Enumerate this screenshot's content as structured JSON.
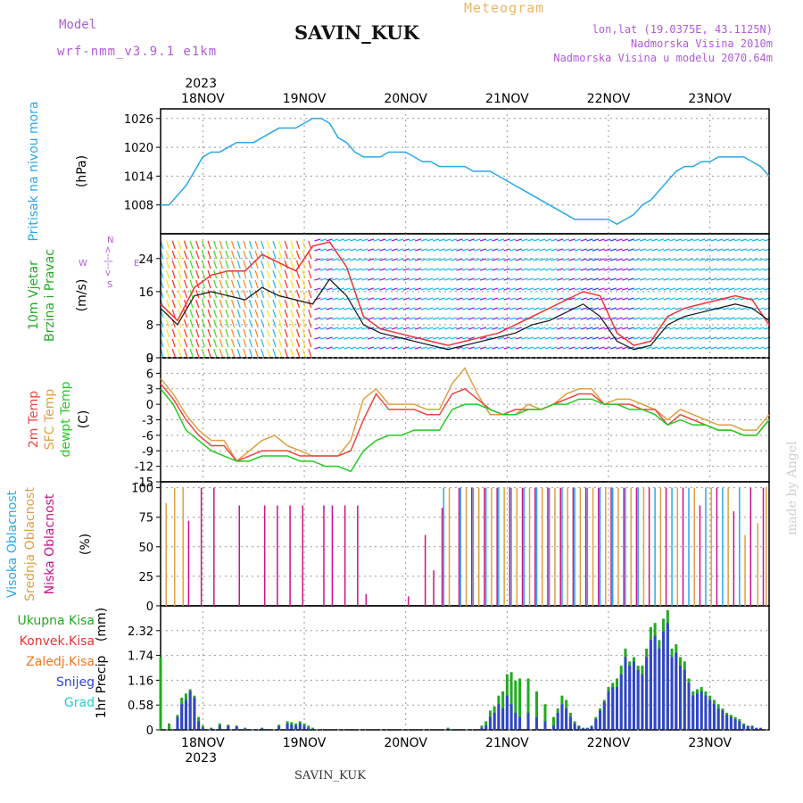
{
  "header": {
    "model_label": "Model",
    "model_name": "wrf-nmm_v3.9.1 e1km",
    "station": "SAVIN_KUK",
    "title": "Meteogram",
    "lonlat": "lon,lat (19.0375E, 43.1125N)",
    "elevation": "Nadmorska Visina 2010m",
    "elevation_model": "Nadmorska Visina u modelu 2070.64m"
  },
  "footer": {
    "station": "SAVIN_KUK",
    "credit": "made by Angel"
  },
  "colors": {
    "pressure": "#29a9e8",
    "temp2m": "#ee4444",
    "sfc": "#e0a040",
    "dew": "#22cc22",
    "cloud_high": "#29a9e8",
    "cloud_mid": "#e0a040",
    "cloud_low": "#cc1188"
  },
  "chart_data": [
    {
      "type": "line",
      "title": "",
      "top_year": "2023",
      "bottom_year": "2023",
      "days": [
        "18NOV",
        "19NOV",
        "20NOV",
        "21NOV",
        "22NOV",
        "23NOV"
      ],
      "labels": [
        "Pritisak na nivou mora",
        "(hPa)"
      ],
      "yticks": [
        "1026",
        "1020",
        "1014",
        "1008"
      ],
      "ylim": [
        1002,
        1028
      ],
      "x": [
        0,
        2,
        4,
        6,
        8,
        10,
        12,
        14,
        16,
        18,
        20,
        22,
        24,
        26,
        28,
        30,
        32,
        34,
        36,
        38,
        40,
        42,
        44,
        46,
        48,
        50,
        52,
        54,
        56,
        58,
        60,
        62,
        64,
        66,
        68,
        70,
        72,
        74,
        76,
        78,
        80,
        82,
        84,
        86,
        88,
        90,
        92,
        94,
        96,
        98,
        100,
        102,
        104,
        106,
        108,
        110,
        112,
        114,
        116,
        118,
        120,
        122,
        124,
        126,
        128,
        130,
        132,
        134,
        136,
        138,
        140,
        142,
        144
      ],
      "series": [
        {
          "values": [
            1008,
            1008,
            1010,
            1012,
            1015,
            1018,
            1019,
            1019,
            1020,
            1021,
            1021,
            1021,
            1022,
            1023,
            1024,
            1024,
            1024,
            1025,
            1026,
            1026,
            1025,
            1022,
            1021,
            1019,
            1018,
            1018,
            1018,
            1019,
            1019,
            1019,
            1018,
            1017,
            1017,
            1016,
            1016,
            1016,
            1016,
            1015,
            1015,
            1015,
            1014,
            1013,
            1012,
            1011,
            1010,
            1009,
            1008,
            1007,
            1006,
            1005,
            1005,
            1005,
            1005,
            1005,
            1004,
            1005,
            1006,
            1008,
            1009,
            1011,
            1013,
            1015,
            1016,
            1016,
            1017,
            1017,
            1018,
            1018,
            1018,
            1018,
            1017,
            1016,
            1014
          ]
        }
      ]
    },
    {
      "type": "line",
      "labels": [
        "10m Vjetar",
        "Brzina i Pravac",
        "(m/s)"
      ],
      "compass": [
        "W",
        "<--|-->",
        "E",
        "N",
        "S"
      ],
      "yticks": [
        "24",
        "16",
        "8",
        "0"
      ],
      "ylim": [
        0,
        30
      ],
      "x": [
        0,
        4,
        8,
        12,
        16,
        20,
        24,
        28,
        32,
        36,
        40,
        44,
        48,
        52,
        56,
        60,
        64,
        68,
        72,
        76,
        80,
        84,
        88,
        92,
        96,
        100,
        104,
        108,
        112,
        116,
        120,
        124,
        128,
        132,
        136,
        140,
        144
      ],
      "series": [
        {
          "values": [
            12,
            8,
            15,
            16,
            15,
            14,
            17,
            15,
            14,
            13,
            19,
            15,
            8,
            6,
            5,
            4,
            3,
            2,
            3,
            4,
            5,
            6,
            8,
            9,
            11,
            13,
            10,
            4,
            2,
            3,
            8,
            10,
            11,
            12,
            13,
            12,
            9
          ]
        },
        {
          "values": [
            13,
            9,
            17,
            20,
            21,
            21,
            25,
            23,
            21,
            27,
            28,
            22,
            10,
            7,
            6,
            5,
            4,
            3,
            4,
            5,
            6,
            8,
            10,
            12,
            14,
            16,
            15,
            6,
            3,
            4,
            10,
            12,
            13,
            14,
            15,
            14,
            8
          ]
        }
      ]
    },
    {
      "type": "line",
      "labels": [
        "2m Temp",
        "SFC Temp",
        "dewpt Temp",
        "(C)"
      ],
      "yticks": [
        "9",
        "6",
        "3",
        "0",
        "-3",
        "-6",
        "-9",
        "-12",
        "-15"
      ],
      "ylim": [
        -15,
        9
      ],
      "x": [
        0,
        3,
        6,
        9,
        12,
        15,
        18,
        21,
        24,
        27,
        30,
        33,
        36,
        39,
        42,
        45,
        48,
        51,
        54,
        57,
        60,
        63,
        66,
        69,
        72,
        75,
        78,
        81,
        84,
        87,
        90,
        93,
        96,
        99,
        102,
        105,
        108,
        111,
        114,
        117,
        120,
        123,
        126,
        129,
        132,
        135,
        138,
        141,
        144
      ],
      "series": [
        {
          "name": "2m Temp",
          "values": [
            4,
            1,
            -3,
            -6,
            -8,
            -8,
            -11,
            -10,
            -9,
            -9,
            -9,
            -10,
            -10,
            -10,
            -10,
            -9,
            -3,
            2,
            -1,
            -1,
            -1,
            -2,
            -2,
            2,
            3,
            1,
            -1,
            -2,
            -1,
            -1,
            -1,
            0,
            1,
            2,
            2,
            0,
            0,
            0,
            -1,
            -1,
            -4,
            -2,
            -3,
            -4,
            -5,
            -5,
            -6,
            -6,
            -3
          ]
        },
        {
          "name": "SFC Temp",
          "values": [
            5,
            2,
            -2,
            -5,
            -7,
            -7,
            -11,
            -9,
            -7,
            -6,
            -8,
            -9,
            -10,
            -10,
            -10,
            -7,
            1,
            3,
            0,
            0,
            0,
            -1,
            -1,
            4,
            7,
            2,
            -2,
            -2,
            -2,
            0,
            -1,
            0,
            2,
            3,
            3,
            0,
            1,
            1,
            0,
            -1,
            -3,
            -1,
            -2,
            -3,
            -4,
            -4,
            -5,
            -5,
            -2
          ]
        },
        {
          "name": "dewpt Temp",
          "values": [
            3,
            0,
            -5,
            -7,
            -9,
            -10,
            -11,
            -11,
            -10,
            -10,
            -10,
            -11,
            -11,
            -12,
            -12,
            -13,
            -9,
            -7,
            -6,
            -6,
            -5,
            -5,
            -5,
            -1,
            0,
            0,
            -1,
            -2,
            -2,
            -1,
            -1,
            0,
            0,
            1,
            1,
            0,
            0,
            -1,
            -1,
            -2,
            -4,
            -3,
            -4,
            -4,
            -5,
            -5,
            -6,
            -6,
            -3
          ]
        }
      ]
    },
    {
      "type": "bar",
      "labels": [
        "Visoka Oblacnost",
        "Srednja Oblacnost",
        "Niska Oblacnost",
        "(%)"
      ],
      "yticks": [
        "100",
        "75",
        "50",
        "25",
        "0"
      ],
      "ylim": [
        0,
        100
      ],
      "series": [
        {
          "name": "Visoka Oblacnost",
          "x": [
            67,
            71,
            74,
            77,
            80,
            83,
            86,
            89,
            92,
            95,
            98,
            101,
            104,
            107,
            110,
            113,
            117,
            121,
            125,
            129,
            133,
            137
          ],
          "values": [
            100,
            100,
            100,
            100,
            100,
            100,
            100,
            100,
            100,
            100,
            100,
            100,
            100,
            100,
            100,
            100,
            100,
            100,
            100,
            100,
            100,
            100
          ]
        },
        {
          "name": "Srednja Oblacnost",
          "x": [
            1,
            3,
            5,
            68,
            72,
            75,
            78,
            81,
            84,
            87,
            90,
            93,
            96,
            99,
            102,
            105,
            108,
            111,
            114,
            118,
            122,
            126,
            130,
            134,
            138,
            141,
            143
          ],
          "values": [
            87,
            100,
            100,
            100,
            100,
            100,
            100,
            100,
            100,
            100,
            100,
            100,
            100,
            100,
            100,
            100,
            100,
            100,
            100,
            100,
            100,
            100,
            100,
            100,
            60,
            70,
            100
          ]
        },
        {
          "name": "Niska Oblacnost",
          "x": [
            6,
            9,
            12,
            18,
            24,
            27,
            30,
            33,
            38,
            40,
            43,
            46,
            48,
            58,
            62,
            64,
            66,
            70,
            73,
            76,
            79,
            82,
            85,
            88,
            91,
            94,
            97,
            100,
            103,
            106,
            109,
            112,
            115,
            119,
            123,
            127,
            131,
            135,
            139,
            142
          ],
          "values": [
            72,
            100,
            100,
            85,
            85,
            85,
            85,
            85,
            85,
            85,
            85,
            85,
            10,
            8,
            60,
            30,
            83,
            100,
            100,
            100,
            100,
            100,
            100,
            100,
            100,
            100,
            100,
            100,
            100,
            100,
            100,
            100,
            100,
            100,
            100,
            85,
            100,
            80,
            100,
            100
          ]
        }
      ]
    },
    {
      "type": "bar",
      "legend": [
        "Ukupna Kisa",
        "Konvek.Kisa",
        "Zaledj.Kisa",
        "Snijeg",
        "Grad"
      ],
      "labels": [
        "1hr Precip",
        "(mm)"
      ],
      "yticks": [
        "2.32",
        "1.74",
        "1.16",
        "0.58",
        "0"
      ],
      "ylim": [
        0,
        2.9
      ],
      "x": [
        0,
        2,
        4,
        5,
        6,
        7,
        8,
        9,
        10,
        12,
        14,
        16,
        18,
        20,
        24,
        28,
        30,
        31,
        32,
        33,
        34,
        35,
        36,
        68,
        70,
        72,
        76,
        77,
        78,
        79,
        80,
        81,
        82,
        83,
        84,
        85,
        87,
        89,
        91,
        93,
        94,
        95,
        96,
        97,
        98,
        99,
        100,
        101,
        102,
        103,
        104,
        105,
        106,
        107,
        108,
        109,
        110,
        111,
        112,
        113,
        114,
        115,
        116,
        117,
        118,
        119,
        120,
        121,
        122,
        123,
        124,
        125,
        126,
        127,
        128,
        129,
        130,
        131,
        132,
        133,
        134,
        135,
        136,
        137,
        138,
        139,
        140,
        141,
        142
      ],
      "series": [
        {
          "name": "Ukupna Kisa",
          "values": [
            1.7,
            0.15,
            0.35,
            0.75,
            0.85,
            0.95,
            0.8,
            0.3,
            0.1,
            0.05,
            0.15,
            0.12,
            0.1,
            0.05,
            0.05,
            0.12,
            0.2,
            0.18,
            0.15,
            0.2,
            0.15,
            0.1,
            0.05,
            0.05,
            0.02,
            0.02,
            0.1,
            0.2,
            0.45,
            0.55,
            0.8,
            0.9,
            1.3,
            1.35,
            1.15,
            1.2,
            1.2,
            0.9,
            0.6,
            0.3,
            0.5,
            0.8,
            0.7,
            0.4,
            0.2,
            0.1,
            0.05,
            0.05,
            0.1,
            0.3,
            0.5,
            0.7,
            1.0,
            1.1,
            1.2,
            1.5,
            1.9,
            1.6,
            1.7,
            1.5,
            1.5,
            1.9,
            2.4,
            2.5,
            2.1,
            2.6,
            2.8,
            1.9,
            2.0,
            1.7,
            1.6,
            1.2,
            0.9,
            0.95,
            1.0,
            0.9,
            0.8,
            0.7,
            0.6,
            0.5,
            0.4,
            0.35,
            0.3,
            0.25,
            0.15,
            0.1,
            0.1,
            0.05,
            0.05
          ]
        },
        {
          "name": "Snijeg",
          "values": [
            0,
            0,
            0.3,
            0.6,
            0.7,
            0.9,
            0.75,
            0.2,
            0.05,
            0.03,
            0.1,
            0.1,
            0.08,
            0.03,
            0.03,
            0.08,
            0.15,
            0.12,
            0.1,
            0.15,
            0.1,
            0.05,
            0.02,
            0.02,
            0,
            0,
            0.05,
            0.1,
            0.3,
            0.4,
            0.6,
            0.5,
            0.8,
            0.6,
            0.4,
            0.3,
            0.4,
            0.3,
            0.2,
            0.1,
            0.4,
            0.6,
            0.5,
            0.3,
            0.15,
            0.08,
            0.03,
            0.04,
            0.08,
            0.25,
            0.45,
            0.65,
            0.9,
            1.0,
            1.0,
            1.3,
            1.7,
            1.5,
            1.6,
            1.4,
            1.3,
            1.7,
            2.1,
            2.2,
            1.9,
            2.3,
            2.5,
            1.7,
            1.8,
            1.5,
            1.4,
            1.1,
            0.8,
            0.85,
            0.9,
            0.8,
            0.7,
            0.6,
            0.5,
            0.45,
            0.35,
            0.3,
            0.25,
            0.2,
            0.12,
            0.08,
            0.08,
            0.04,
            0.04
          ]
        }
      ]
    }
  ]
}
